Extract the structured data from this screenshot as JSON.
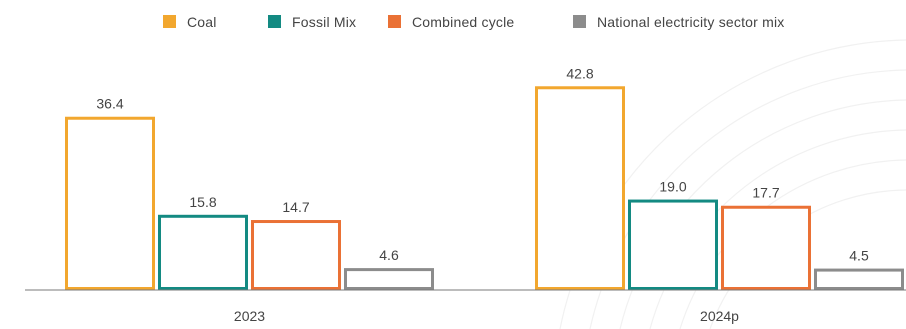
{
  "chart_data": {
    "type": "bar",
    "categories": [
      "2023",
      "2024p"
    ],
    "series": [
      {
        "name": "Coal",
        "color": "#F2A72E",
        "values": [
          36.4,
          42.8
        ],
        "labels": [
          "36.4",
          "42.8"
        ]
      },
      {
        "name": "Fossil Mix",
        "color": "#138A82",
        "values": [
          15.8,
          19.0
        ],
        "labels": [
          "15.8",
          "19.0"
        ]
      },
      {
        "name": "Combined cycle",
        "color": "#EA7135",
        "values": [
          14.7,
          17.7
        ],
        "labels": [
          "14.7",
          "17.7"
        ]
      },
      {
        "name": "National electricity sector mix",
        "color": "#8C8C8C",
        "values": [
          4.6,
          4.5
        ],
        "labels": [
          "4.6",
          "4.5"
        ]
      }
    ],
    "ylim": [
      0,
      45
    ],
    "grid": false,
    "legend_position": "top",
    "title": "",
    "xlabel": "",
    "ylabel": ""
  }
}
